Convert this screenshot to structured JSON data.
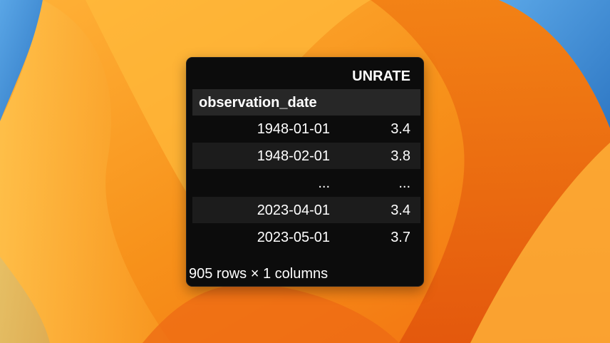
{
  "colors": {
    "table_bg": "#0c0c0c",
    "header_band": "#272727",
    "stripe": "#1c1c1c",
    "text": "#ffffff",
    "wallpaper_orange": "#f59a1c",
    "wallpaper_blue": "#3f8fd6"
  },
  "table": {
    "column_header": "UNRATE",
    "index_name": "observation_date",
    "rows": [
      {
        "date": "1948-01-01",
        "value": "3.4"
      },
      {
        "date": "1948-02-01",
        "value": "3.8"
      },
      {
        "date": "...",
        "value": "..."
      },
      {
        "date": "2023-04-01",
        "value": "3.4"
      },
      {
        "date": "2023-05-01",
        "value": "3.7"
      }
    ],
    "footer": "905 rows × 1 columns"
  }
}
